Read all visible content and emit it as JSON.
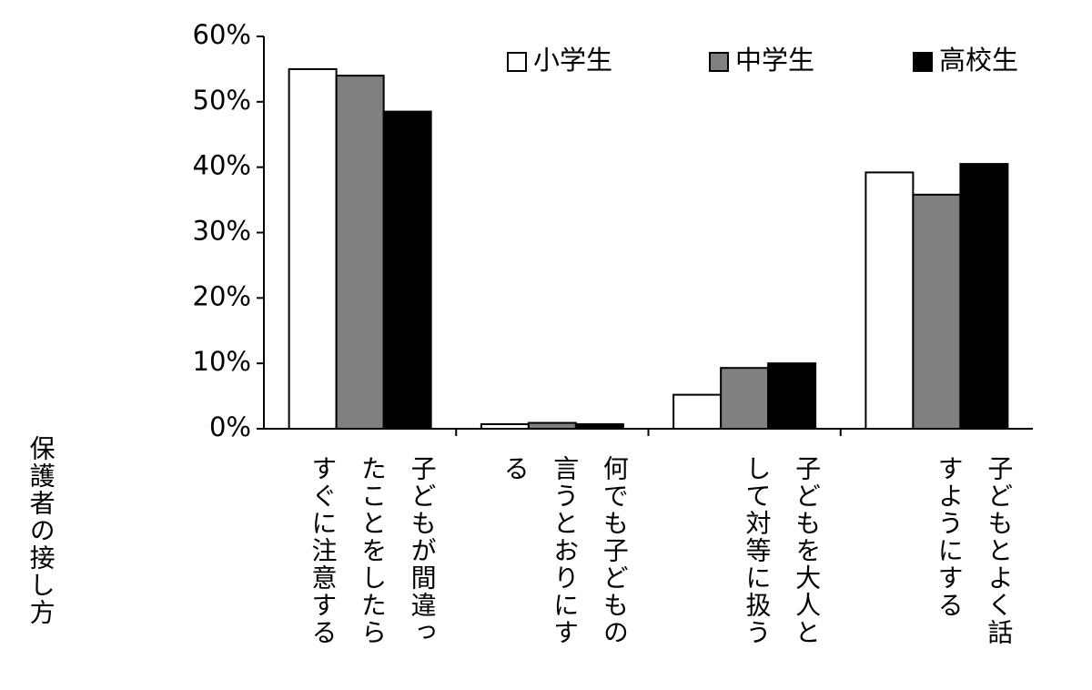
{
  "chart_data": {
    "type": "bar",
    "x_label": "保護者の接し方",
    "categories": [
      "子どもが間違ったことをしたらすぐに注意する",
      "何でも子どもの言うとおりにする",
      "子どもを大人として対等に扱う",
      "子どもとよく話すようにする"
    ],
    "series": [
      {
        "name": "小学生",
        "color": "#ffffff",
        "values": [
          55,
          0.7,
          5.2,
          39.2
        ]
      },
      {
        "name": "中学生",
        "color": "#808080",
        "values": [
          54,
          0.9,
          9.3,
          35.8
        ]
      },
      {
        "name": "高校生",
        "color": "#000000",
        "values": [
          48.5,
          0.7,
          10,
          40.5
        ]
      }
    ],
    "ylim": [
      0,
      60
    ],
    "yticks": [
      {
        "value": 0,
        "label": "0%"
      },
      {
        "value": 10,
        "label": "10%"
      },
      {
        "value": 20,
        "label": "20%"
      },
      {
        "value": 30,
        "label": "30%"
      },
      {
        "value": 40,
        "label": "40%"
      },
      {
        "value": 50,
        "label": "50%"
      },
      {
        "value": 60,
        "label": "60%"
      }
    ],
    "legend": "top-right"
  }
}
